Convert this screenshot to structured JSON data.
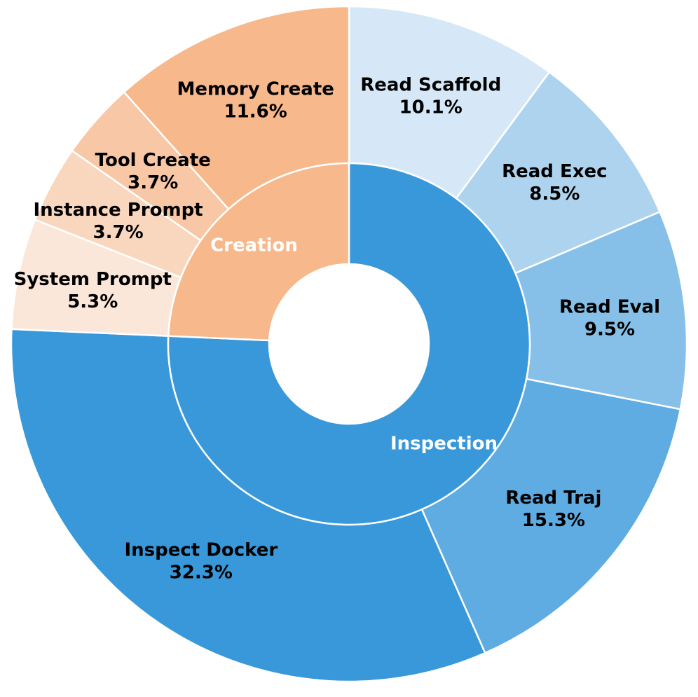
{
  "chart_data": {
    "type": "pie",
    "subtype": "nested-donut",
    "start_angle_deg": 90,
    "direction": "clockwise",
    "inner_ring": [
      {
        "label": "Inspection",
        "value": 75.7,
        "color": "#3898da"
      },
      {
        "label": "Creation",
        "value": 24.3,
        "color": "#f7b88c"
      }
    ],
    "outer_ring": [
      {
        "label": "Read Scaffold",
        "value": 10.1,
        "pct": "10.1%",
        "group": "Inspection",
        "color": "#d6e8f7"
      },
      {
        "label": "Read Exec",
        "value": 8.5,
        "pct": "8.5%",
        "group": "Inspection",
        "color": "#aed3ef"
      },
      {
        "label": "Read Eval",
        "value": 9.5,
        "pct": "9.5%",
        "group": "Inspection",
        "color": "#86c0e8"
      },
      {
        "label": "Read Traj",
        "value": 15.3,
        "pct": "15.3%",
        "group": "Inspection",
        "color": "#5eace1"
      },
      {
        "label": "Inspect Docker",
        "value": 32.3,
        "pct": "32.3%",
        "group": "Inspection",
        "color": "#3898da"
      },
      {
        "label": "System Prompt",
        "value": 5.3,
        "pct": "5.3%",
        "group": "Creation",
        "color": "#fbe7d9"
      },
      {
        "label": "Instance Prompt",
        "value": 3.7,
        "pct": "3.7%",
        "group": "Creation",
        "color": "#f9d7bf"
      },
      {
        "label": "Tool Create",
        "value": 3.7,
        "pct": "3.7%",
        "group": "Creation",
        "color": "#f8c7a5"
      },
      {
        "label": "Memory Create",
        "value": 11.6,
        "pct": "11.6%",
        "group": "Creation",
        "color": "#f7b88c"
      }
    ]
  }
}
